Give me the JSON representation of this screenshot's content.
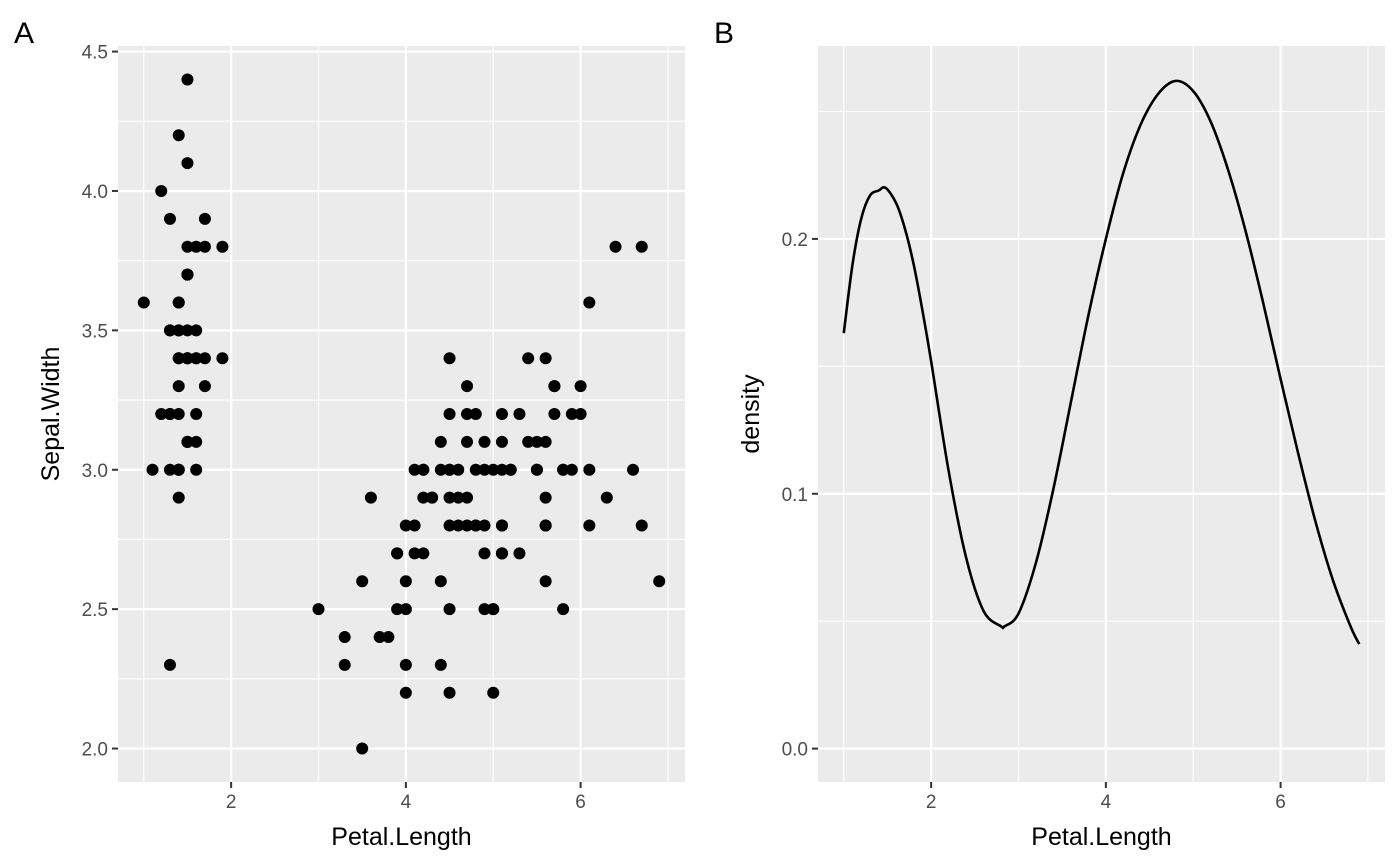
{
  "chart_data": [
    {
      "panel_tag": "A",
      "type": "scatter",
      "title": "",
      "xlabel": "Petal.Length",
      "ylabel": "Sepal.Width",
      "xlim": [
        0.705,
        7.195
      ],
      "ylim": [
        1.88,
        4.52
      ],
      "x_ticks": [
        {
          "value": 2,
          "label": "2"
        },
        {
          "value": 4,
          "label": "4"
        },
        {
          "value": 6,
          "label": "6"
        }
      ],
      "y_ticks": [
        {
          "value": 2.0,
          "label": "2.0"
        },
        {
          "value": 2.5,
          "label": "2.5"
        },
        {
          "value": 3.0,
          "label": "3.0"
        },
        {
          "value": 3.5,
          "label": "3.5"
        },
        {
          "value": 4.0,
          "label": "4.0"
        },
        {
          "value": 4.5,
          "label": "4.5"
        }
      ],
      "grid": true,
      "background": "#ebebeb",
      "point_color": "#000000",
      "x": [
        1.4,
        1.4,
        1.3,
        1.5,
        1.4,
        1.7,
        1.4,
        1.5,
        1.4,
        1.5,
        1.5,
        1.6,
        1.4,
        1.1,
        1.2,
        1.5,
        1.3,
        1.4,
        1.7,
        1.5,
        1.7,
        1.5,
        1.0,
        1.7,
        1.9,
        1.6,
        1.6,
        1.5,
        1.4,
        1.6,
        1.6,
        1.5,
        1.5,
        1.4,
        1.5,
        1.2,
        1.3,
        1.4,
        1.3,
        1.5,
        1.3,
        1.3,
        1.3,
        1.6,
        1.9,
        1.4,
        1.6,
        1.4,
        1.5,
        1.4,
        4.7,
        4.5,
        4.9,
        4.0,
        4.6,
        4.5,
        4.7,
        3.3,
        4.6,
        3.9,
        3.5,
        4.2,
        4.0,
        4.7,
        3.6,
        4.4,
        4.5,
        4.1,
        4.5,
        3.9,
        4.8,
        4.0,
        4.9,
        4.7,
        4.3,
        4.4,
        4.8,
        5.0,
        4.5,
        3.5,
        3.8,
        3.7,
        3.9,
        5.1,
        4.5,
        4.5,
        4.7,
        4.4,
        4.1,
        4.0,
        4.4,
        4.6,
        4.0,
        3.3,
        4.2,
        4.2,
        4.2,
        4.3,
        3.0,
        4.1,
        6.0,
        5.1,
        5.9,
        5.6,
        5.8,
        6.6,
        4.5,
        6.3,
        5.8,
        6.1,
        5.1,
        5.3,
        5.5,
        5.0,
        5.1,
        5.3,
        5.5,
        6.7,
        6.9,
        5.0,
        5.7,
        4.9,
        6.7,
        4.9,
        5.7,
        6.0,
        4.8,
        4.9,
        5.6,
        5.8,
        6.1,
        6.4,
        5.6,
        5.1,
        5.6,
        6.1,
        5.6,
        5.5,
        4.8,
        5.4,
        5.6,
        5.1,
        5.1,
        5.9,
        5.7,
        5.2,
        5.0,
        5.2,
        5.4,
        5.1
      ],
      "y": [
        3.5,
        3.0,
        3.2,
        3.1,
        3.6,
        3.9,
        3.4,
        3.4,
        2.9,
        3.1,
        3.7,
        3.4,
        3.0,
        3.0,
        4.0,
        4.4,
        3.9,
        3.5,
        3.8,
        3.8,
        3.4,
        3.7,
        3.6,
        3.3,
        3.4,
        3.0,
        3.4,
        3.5,
        3.4,
        3.2,
        3.1,
        3.4,
        4.1,
        4.2,
        3.1,
        3.2,
        3.5,
        3.6,
        3.0,
        3.4,
        3.5,
        2.3,
        3.2,
        3.5,
        3.8,
        3.0,
        3.8,
        3.2,
        3.7,
        3.3,
        3.2,
        3.2,
        3.1,
        2.3,
        2.8,
        2.8,
        3.3,
        2.4,
        2.9,
        2.7,
        2.0,
        3.0,
        2.2,
        2.9,
        2.9,
        3.1,
        3.0,
        2.7,
        2.2,
        2.5,
        3.2,
        2.8,
        2.5,
        2.8,
        2.9,
        3.0,
        2.8,
        3.0,
        2.9,
        2.6,
        2.4,
        2.4,
        2.7,
        2.7,
        3.0,
        3.4,
        3.1,
        2.3,
        3.0,
        2.5,
        2.6,
        3.0,
        2.6,
        2.3,
        2.7,
        3.0,
        2.9,
        2.9,
        2.5,
        2.8,
        3.3,
        2.7,
        3.0,
        2.9,
        3.0,
        3.0,
        2.5,
        2.9,
        2.5,
        3.6,
        3.2,
        2.7,
        3.0,
        2.5,
        2.8,
        3.2,
        3.0,
        3.8,
        2.6,
        2.2,
        3.2,
        2.8,
        2.8,
        2.7,
        3.3,
        3.2,
        2.8,
        3.0,
        2.8,
        3.0,
        2.8,
        3.8,
        2.8,
        2.8,
        2.6,
        3.0,
        3.4,
        3.1,
        3.0,
        3.1,
        3.1,
        3.1,
        2.7,
        3.2,
        3.3,
        3.0,
        2.5,
        3.0,
        3.4,
        3.0
      ]
    },
    {
      "panel_tag": "B",
      "type": "line",
      "title": "",
      "xlabel": "Petal.Length",
      "ylabel": "density",
      "xlim": [
        0.705,
        7.195
      ],
      "ylim": [
        -0.0131,
        0.2757
      ],
      "x_ticks": [
        {
          "value": 2,
          "label": "2"
        },
        {
          "value": 4,
          "label": "4"
        },
        {
          "value": 6,
          "label": "6"
        }
      ],
      "y_ticks": [
        {
          "value": 0.0,
          "label": "0.0"
        },
        {
          "value": 0.1,
          "label": "0.1"
        },
        {
          "value": 0.2,
          "label": "0.2"
        }
      ],
      "grid": true,
      "background": "#ebebeb",
      "line_color": "#000000",
      "x": [
        1.0,
        1.1,
        1.2,
        1.3,
        1.4,
        1.48,
        1.6,
        1.7,
        1.8,
        1.9,
        2.0,
        2.2,
        2.4,
        2.6,
        2.8,
        2.84,
        3.0,
        3.2,
        3.4,
        3.6,
        3.8,
        4.0,
        4.2,
        4.4,
        4.6,
        4.8,
        5.0,
        5.2,
        5.4,
        5.6,
        5.8,
        6.0,
        6.2,
        6.4,
        6.6,
        6.8,
        6.9
      ],
      "y": [
        0.163,
        0.19,
        0.208,
        0.217,
        0.219,
        0.22,
        0.214,
        0.204,
        0.19,
        0.172,
        0.152,
        0.109,
        0.075,
        0.054,
        0.048,
        0.048,
        0.053,
        0.073,
        0.102,
        0.136,
        0.17,
        0.2,
        0.226,
        0.245,
        0.257,
        0.262,
        0.258,
        0.246,
        0.227,
        0.203,
        0.175,
        0.145,
        0.116,
        0.089,
        0.066,
        0.048,
        0.041
      ]
    }
  ]
}
